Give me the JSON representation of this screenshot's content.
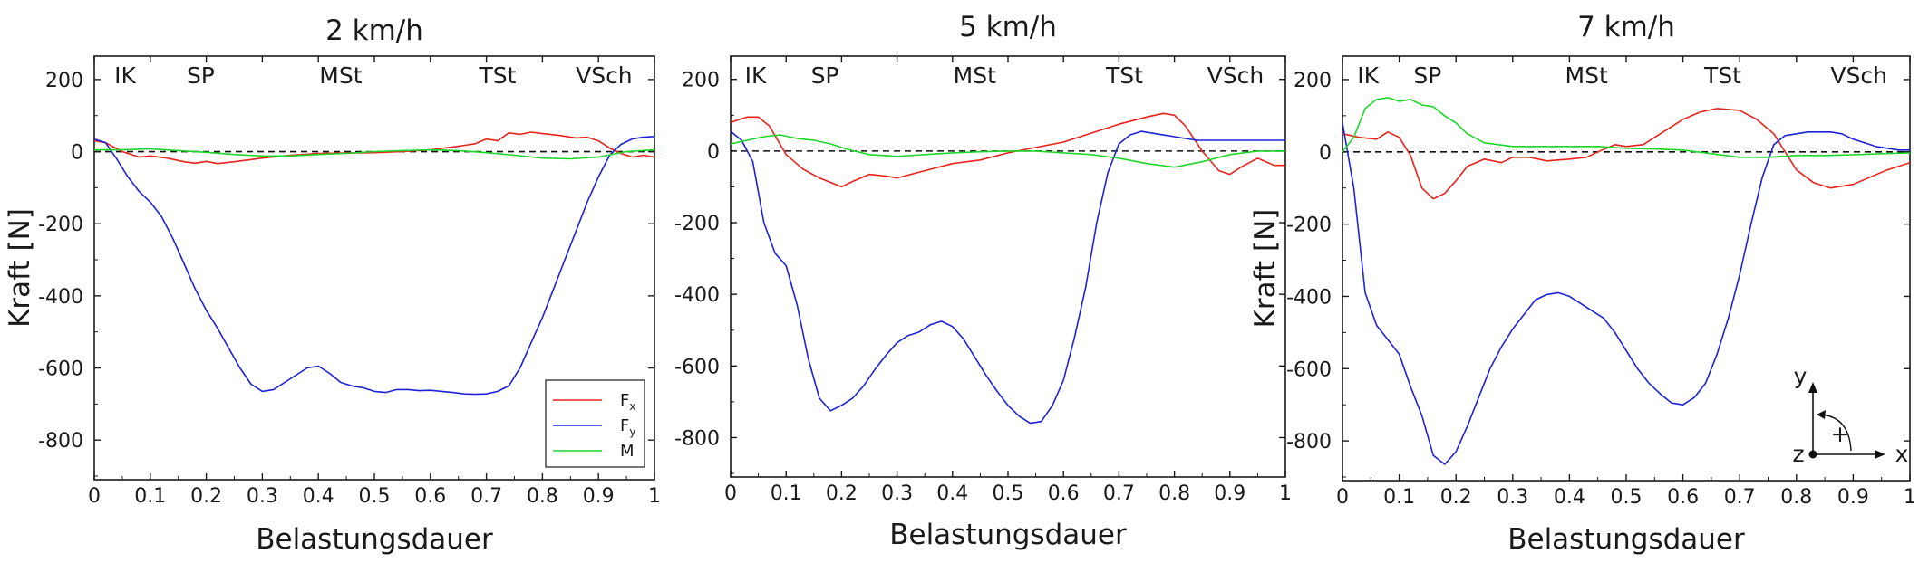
{
  "colors": {
    "Fx": "#e8231c",
    "Fy": "#1e23d8",
    "M": "#1fd62a",
    "axis": "#1a1a1a"
  },
  "legend": {
    "position": "bottom-right of first chart",
    "items": [
      {
        "key": "Fx",
        "base": "F",
        "sub": "x"
      },
      {
        "key": "Fy",
        "base": "F",
        "sub": "y"
      },
      {
        "key": "M",
        "base": "M",
        "sub": ""
      }
    ]
  },
  "coordinate_icon": {
    "y_label": "y",
    "x_label": "x",
    "z_label": "z",
    "sign": "+"
  },
  "chart_data": [
    {
      "type": "line",
      "title": "2 km/h",
      "xlabel": "Belastungsdauer",
      "ylabel": "Kraft [N]",
      "xlim": [
        0,
        1
      ],
      "ylim": [
        -910,
        265
      ],
      "grid": false,
      "zero_line": "dashed",
      "x_ticks": [
        "0",
        "0.1",
        "0.2",
        "0.3",
        "0.4",
        "0.5",
        "0.6",
        "0.7",
        "0.8",
        "0.9",
        "1"
      ],
      "y_ticks": [
        "200",
        "0",
        "-200",
        "-400",
        "-600",
        "-800"
      ],
      "phases": [
        {
          "label": "IK",
          "x": 0.055
        },
        {
          "label": "SP",
          "x": 0.19
        },
        {
          "label": "MSt",
          "x": 0.44
        },
        {
          "label": "TSt",
          "x": 0.72
        },
        {
          "label": "VSch",
          "x": 0.91
        }
      ],
      "series": [
        {
          "key": "Fx",
          "x": [
            0,
            0.02,
            0.05,
            0.08,
            0.1,
            0.13,
            0.16,
            0.18,
            0.2,
            0.22,
            0.25,
            0.3,
            0.35,
            0.4,
            0.45,
            0.5,
            0.55,
            0.6,
            0.65,
            0.68,
            0.7,
            0.72,
            0.74,
            0.76,
            0.78,
            0.8,
            0.83,
            0.86,
            0.88,
            0.9,
            0.92,
            0.94,
            0.96,
            0.98,
            1
          ],
          "y": [
            30,
            25,
            0,
            -15,
            -12,
            -18,
            -28,
            -32,
            -27,
            -33,
            -28,
            -18,
            -10,
            -5,
            -4,
            -3,
            0,
            5,
            15,
            22,
            35,
            30,
            52,
            48,
            54,
            50,
            45,
            38,
            40,
            30,
            10,
            -5,
            -15,
            -10,
            -15
          ]
        },
        {
          "key": "Fy",
          "x": [
            0,
            0.02,
            0.04,
            0.06,
            0.08,
            0.1,
            0.12,
            0.14,
            0.16,
            0.18,
            0.2,
            0.22,
            0.24,
            0.26,
            0.28,
            0.3,
            0.32,
            0.34,
            0.36,
            0.38,
            0.4,
            0.42,
            0.44,
            0.46,
            0.48,
            0.5,
            0.52,
            0.54,
            0.56,
            0.58,
            0.6,
            0.62,
            0.64,
            0.66,
            0.68,
            0.7,
            0.72,
            0.74,
            0.76,
            0.78,
            0.8,
            0.82,
            0.84,
            0.86,
            0.88,
            0.9,
            0.92,
            0.94,
            0.96,
            0.98,
            1
          ],
          "y": [
            35,
            25,
            -20,
            -70,
            -110,
            -140,
            -180,
            -240,
            -310,
            -380,
            -440,
            -490,
            -545,
            -600,
            -645,
            -665,
            -660,
            -640,
            -620,
            -600,
            -595,
            -615,
            -640,
            -650,
            -655,
            -665,
            -668,
            -660,
            -660,
            -663,
            -662,
            -665,
            -668,
            -672,
            -673,
            -672,
            -665,
            -650,
            -600,
            -530,
            -460,
            -380,
            -300,
            -220,
            -140,
            -70,
            -10,
            20,
            35,
            40,
            42
          ]
        },
        {
          "key": "M",
          "x": [
            0,
            0.05,
            0.1,
            0.15,
            0.2,
            0.25,
            0.3,
            0.35,
            0.4,
            0.45,
            0.5,
            0.55,
            0.6,
            0.65,
            0.7,
            0.75,
            0.8,
            0.85,
            0.9,
            0.95,
            1
          ],
          "y": [
            5,
            5,
            8,
            3,
            -2,
            -8,
            -12,
            -12,
            -8,
            -5,
            0,
            3,
            5,
            3,
            -3,
            -10,
            -18,
            -20,
            -15,
            0,
            5
          ]
        }
      ]
    },
    {
      "type": "line",
      "title": "5 km/h",
      "xlabel": "Belastungsdauer",
      "ylabel": "",
      "xlim": [
        0,
        1
      ],
      "ylim": [
        -910,
        265
      ],
      "grid": false,
      "zero_line": "dashed",
      "x_ticks": [
        "0",
        "0.1",
        "0.2",
        "0.3",
        "0.4",
        "0.5",
        "0.6",
        "0.7",
        "0.8",
        "0.9",
        "1"
      ],
      "y_ticks": [
        "200",
        "0",
        "-200",
        "-400",
        "-600",
        "-800"
      ],
      "phases": [
        {
          "label": "IK",
          "x": 0.045
        },
        {
          "label": "SP",
          "x": 0.17
        },
        {
          "label": "MSt",
          "x": 0.44
        },
        {
          "label": "TSt",
          "x": 0.71
        },
        {
          "label": "VSch",
          "x": 0.91
        }
      ],
      "series": [
        {
          "key": "Fx",
          "x": [
            0,
            0.03,
            0.05,
            0.07,
            0.1,
            0.13,
            0.16,
            0.2,
            0.22,
            0.25,
            0.28,
            0.3,
            0.35,
            0.4,
            0.45,
            0.5,
            0.55,
            0.6,
            0.65,
            0.7,
            0.75,
            0.78,
            0.8,
            0.82,
            0.85,
            0.88,
            0.9,
            0.92,
            0.95,
            0.98,
            1
          ],
          "y": [
            80,
            95,
            95,
            70,
            -10,
            -50,
            -75,
            -100,
            -85,
            -65,
            -70,
            -75,
            -55,
            -35,
            -25,
            -5,
            10,
            25,
            50,
            75,
            95,
            105,
            100,
            70,
            0,
            -55,
            -65,
            -45,
            -20,
            -40,
            -40
          ]
        },
        {
          "key": "Fy",
          "x": [
            0,
            0.02,
            0.04,
            0.06,
            0.08,
            0.1,
            0.12,
            0.14,
            0.16,
            0.18,
            0.2,
            0.22,
            0.24,
            0.26,
            0.28,
            0.3,
            0.32,
            0.34,
            0.36,
            0.38,
            0.4,
            0.42,
            0.44,
            0.46,
            0.48,
            0.5,
            0.52,
            0.54,
            0.56,
            0.58,
            0.6,
            0.62,
            0.64,
            0.66,
            0.68,
            0.7,
            0.72,
            0.74,
            0.76,
            0.78,
            0.8,
            0.82,
            0.84,
            0.86,
            0.88,
            0.9,
            0.92,
            0.94,
            0.96,
            0.98,
            1
          ],
          "y": [
            55,
            30,
            -30,
            -200,
            -285,
            -320,
            -430,
            -580,
            -690,
            -725,
            -710,
            -690,
            -655,
            -610,
            -570,
            -535,
            -515,
            -505,
            -485,
            -475,
            -490,
            -525,
            -575,
            -625,
            -670,
            -710,
            -740,
            -760,
            -755,
            -710,
            -640,
            -520,
            -380,
            -200,
            -60,
            20,
            45,
            55,
            50,
            45,
            40,
            35,
            30,
            30,
            30,
            30,
            30,
            30,
            30,
            30,
            30
          ]
        },
        {
          "key": "M",
          "x": [
            0,
            0.03,
            0.06,
            0.09,
            0.12,
            0.15,
            0.18,
            0.21,
            0.25,
            0.3,
            0.35,
            0.4,
            0.45,
            0.5,
            0.55,
            0.6,
            0.65,
            0.7,
            0.75,
            0.8,
            0.85,
            0.9,
            0.95,
            1
          ],
          "y": [
            20,
            30,
            40,
            45,
            35,
            30,
            20,
            5,
            -10,
            -15,
            -10,
            -5,
            -2,
            0,
            0,
            -5,
            -10,
            -20,
            -35,
            -45,
            -30,
            -10,
            0,
            0
          ]
        }
      ]
    },
    {
      "type": "line",
      "title": "7 km/h",
      "xlabel": "Belastungsdauer",
      "ylabel": "Kraft [N]",
      "xlim": [
        0,
        1
      ],
      "ylim": [
        -910,
        265
      ],
      "grid": false,
      "zero_line": "dashed",
      "x_ticks": [
        "0",
        "0.1",
        "0.2",
        "0.3",
        "0.4",
        "0.5",
        "0.6",
        "0.7",
        "0.8",
        "0.9",
        "1"
      ],
      "y_ticks": [
        "200",
        "0",
        "-200",
        "-400",
        "-600",
        "-800"
      ],
      "phases": [
        {
          "label": "IK",
          "x": 0.045
        },
        {
          "label": "SP",
          "x": 0.15
        },
        {
          "label": "MSt",
          "x": 0.43
        },
        {
          "label": "TSt",
          "x": 0.67
        },
        {
          "label": "VSch",
          "x": 0.91
        }
      ],
      "series": [
        {
          "key": "Fx",
          "x": [
            0,
            0.03,
            0.06,
            0.08,
            0.1,
            0.12,
            0.14,
            0.16,
            0.18,
            0.2,
            0.22,
            0.25,
            0.28,
            0.3,
            0.33,
            0.36,
            0.4,
            0.43,
            0.45,
            0.48,
            0.5,
            0.53,
            0.56,
            0.6,
            0.63,
            0.66,
            0.7,
            0.73,
            0.76,
            0.78,
            0.8,
            0.83,
            0.86,
            0.88,
            0.9,
            0.93,
            0.96,
            1
          ],
          "y": [
            50,
            40,
            35,
            55,
            40,
            -10,
            -100,
            -130,
            -115,
            -80,
            -40,
            -20,
            -30,
            -15,
            -15,
            -25,
            -20,
            -15,
            0,
            20,
            15,
            20,
            50,
            90,
            110,
            120,
            115,
            90,
            50,
            0,
            -50,
            -85,
            -100,
            -95,
            -90,
            -70,
            -50,
            -30
          ]
        },
        {
          "key": "Fy",
          "x": [
            0,
            0.02,
            0.04,
            0.06,
            0.08,
            0.1,
            0.12,
            0.14,
            0.16,
            0.18,
            0.2,
            0.22,
            0.24,
            0.26,
            0.28,
            0.3,
            0.32,
            0.34,
            0.36,
            0.38,
            0.4,
            0.42,
            0.44,
            0.46,
            0.48,
            0.5,
            0.52,
            0.54,
            0.56,
            0.58,
            0.6,
            0.62,
            0.64,
            0.66,
            0.68,
            0.7,
            0.72,
            0.74,
            0.76,
            0.78,
            0.8,
            0.82,
            0.84,
            0.86,
            0.88,
            0.9,
            0.92,
            0.94,
            0.96,
            0.98,
            1
          ],
          "y": [
            80,
            -100,
            -390,
            -480,
            -520,
            -560,
            -650,
            -730,
            -840,
            -865,
            -830,
            -760,
            -680,
            -600,
            -540,
            -490,
            -450,
            -410,
            -395,
            -390,
            -400,
            -420,
            -440,
            -460,
            -500,
            -550,
            -600,
            -640,
            -670,
            -695,
            -700,
            -680,
            -640,
            -560,
            -460,
            -340,
            -200,
            -70,
            20,
            45,
            50,
            55,
            55,
            55,
            50,
            35,
            25,
            15,
            10,
            5,
            5
          ]
        },
        {
          "key": "M",
          "x": [
            0,
            0.02,
            0.04,
            0.06,
            0.08,
            0.1,
            0.12,
            0.14,
            0.16,
            0.18,
            0.2,
            0.22,
            0.25,
            0.3,
            0.35,
            0.4,
            0.45,
            0.5,
            0.55,
            0.6,
            0.65,
            0.7,
            0.75,
            0.8,
            0.85,
            0.9,
            0.95,
            1
          ],
          "y": [
            0,
            40,
            120,
            145,
            150,
            140,
            145,
            130,
            125,
            100,
            80,
            50,
            25,
            15,
            15,
            15,
            15,
            10,
            8,
            5,
            -5,
            -15,
            -15,
            -10,
            -10,
            -8,
            -5,
            -3
          ]
        }
      ]
    }
  ]
}
